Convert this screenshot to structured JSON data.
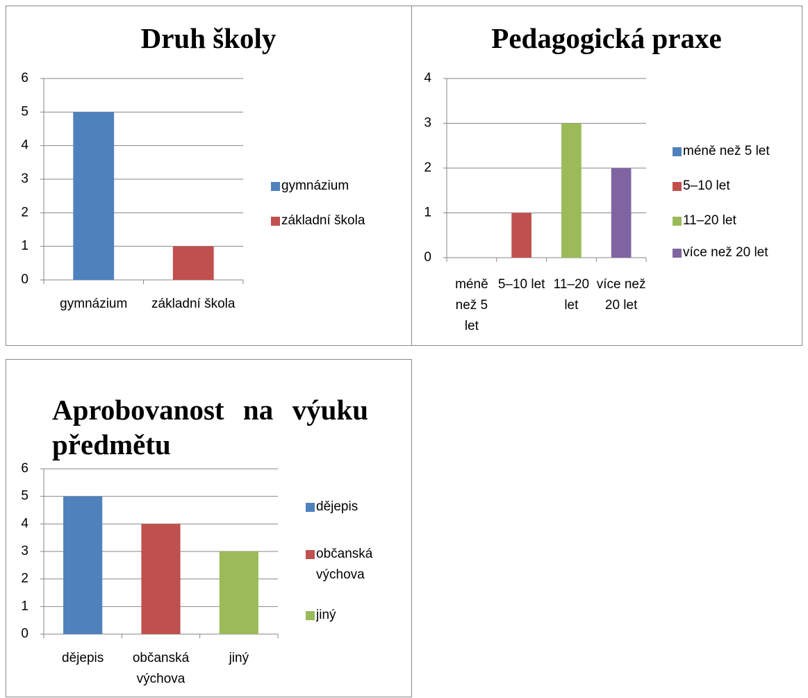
{
  "chart_data": [
    {
      "type": "bar",
      "title": "Druh školy",
      "categories": [
        "gymnázium",
        "základní škola"
      ],
      "values": [
        5,
        1
      ],
      "colors": [
        "#4f81bd",
        "#c0504d"
      ],
      "ylim": [
        0,
        6
      ],
      "yticks": [
        0,
        1,
        2,
        3,
        4,
        5,
        6
      ],
      "grid": true,
      "legend": "right"
    },
    {
      "type": "bar",
      "title": "Pedagogická praxe",
      "categories": [
        "méně než 5 let",
        "5–10 let",
        "11–20 let",
        "více než 20 let"
      ],
      "values": [
        0,
        1,
        3,
        2
      ],
      "colors": [
        "#4f81bd",
        "#c0504d",
        "#9bbb59",
        "#8064a2"
      ],
      "ylim": [
        0,
        4
      ],
      "yticks": [
        0,
        1,
        2,
        3,
        4
      ],
      "grid": true,
      "legend": "right"
    },
    {
      "type": "bar",
      "title": "Aprobovanost na výuku předmětu",
      "categories": [
        "dějepis",
        "občanská výchova",
        "jiný"
      ],
      "values": [
        5,
        4,
        3
      ],
      "colors": [
        "#4f81bd",
        "#c0504d",
        "#9bbb59"
      ],
      "ylim": [
        0,
        6
      ],
      "yticks": [
        0,
        1,
        2,
        3,
        4,
        5,
        6
      ],
      "grid": true,
      "legend": "right"
    }
  ]
}
